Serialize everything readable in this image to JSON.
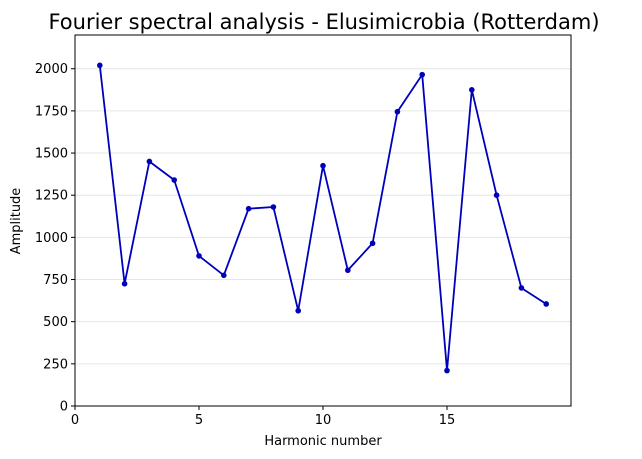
{
  "chart_data": {
    "type": "line",
    "title": "Fourier spectral analysis - Elusimicrobia (Rotterdam)",
    "xlabel": "Harmonic number",
    "ylabel": "Amplitude",
    "xlim": [
      0,
      20
    ],
    "ylim": [
      0,
      2200
    ],
    "xticks": [
      0,
      5,
      10,
      15
    ],
    "yticks": [
      0,
      250,
      500,
      750,
      1000,
      1250,
      1500,
      1750,
      2000
    ],
    "grid": "horizontal",
    "legend": "none",
    "series": [
      {
        "color": "#0000bb",
        "x": [
          1,
          2,
          3,
          4,
          5,
          6,
          7,
          8,
          9,
          10,
          11,
          12,
          13,
          14,
          15,
          16,
          17,
          18,
          19
        ],
        "y": [
          2020,
          725,
          1450,
          1340,
          890,
          775,
          1170,
          1180,
          565,
          1425,
          805,
          965,
          1745,
          1965,
          210,
          1875,
          1250,
          700,
          605
        ]
      }
    ]
  }
}
